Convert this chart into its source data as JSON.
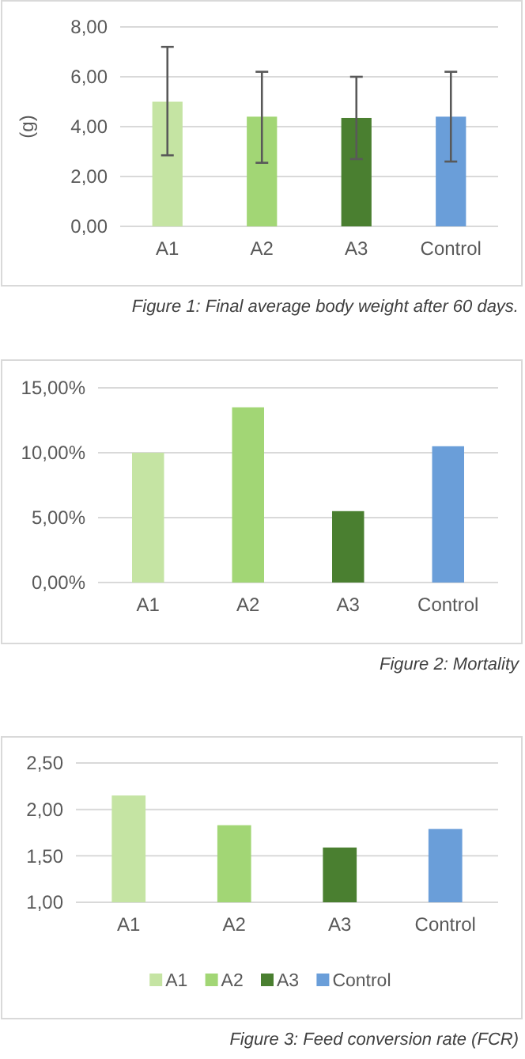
{
  "chart_data": [
    {
      "type": "bar",
      "ylabel": "(g)",
      "categories": [
        "A1",
        "A2",
        "A3",
        "Control"
      ],
      "values": [
        5.0,
        4.4,
        4.35,
        4.4
      ],
      "colors": [
        "#c5e4a3",
        "#a2d675",
        "#4a7f30",
        "#6a9ed9"
      ],
      "errors": [
        [
          2.85,
          7.2
        ],
        [
          2.55,
          6.2
        ],
        [
          2.7,
          6.0
        ],
        [
          2.6,
          6.2
        ]
      ],
      "ylim": [
        0,
        8
      ],
      "yticks": [
        {
          "value": 0,
          "label": "0,00"
        },
        {
          "value": 2,
          "label": "2,00"
        },
        {
          "value": 4,
          "label": "4,00"
        },
        {
          "value": 6,
          "label": "6,00"
        },
        {
          "value": 8,
          "label": "8,00"
        }
      ],
      "grid": "y",
      "legend": false,
      "annotations": [
        "Figure 1: Final average body weight after 60 days."
      ]
    },
    {
      "type": "bar",
      "categories": [
        "A1",
        "A2",
        "A3",
        "Control"
      ],
      "values": [
        10.0,
        13.5,
        5.5,
        10.5
      ],
      "colors": [
        "#c5e4a3",
        "#a2d675",
        "#4a7f30",
        "#6a9ed9"
      ],
      "ylim": [
        0,
        15
      ],
      "yticks": [
        {
          "value": 0,
          "label": "0,00%"
        },
        {
          "value": 5,
          "label": "5,00%"
        },
        {
          "value": 10,
          "label": "10,00%"
        },
        {
          "value": 15,
          "label": "15,00%"
        }
      ],
      "grid": "y",
      "legend": false,
      "annotations": [
        "Figure 2: Mortality"
      ]
    },
    {
      "type": "bar",
      "categories": [
        "A1",
        "A2",
        "A3",
        "Control"
      ],
      "series": [
        {
          "name": "A1",
          "color": "#c5e4a3",
          "values": [
            2.15,
            null,
            null,
            null
          ]
        },
        {
          "name": "A2",
          "color": "#a2d675",
          "values": [
            null,
            1.83,
            null,
            null
          ]
        },
        {
          "name": "A3",
          "color": "#4a7f30",
          "values": [
            null,
            null,
            1.59,
            null
          ]
        },
        {
          "name": "Control",
          "color": "#6a9ed9",
          "values": [
            null,
            null,
            null,
            1.79
          ]
        }
      ],
      "ylim": [
        1,
        2.5
      ],
      "yticks": [
        {
          "value": 1,
          "label": "1,00"
        },
        {
          "value": 1.5,
          "label": "1,50"
        },
        {
          "value": 2,
          "label": "2,00"
        },
        {
          "value": 2.5,
          "label": "2,50"
        }
      ],
      "grid": "y",
      "legend": "bottom",
      "annotations": [
        "Figure 3: Feed conversion rate (FCR)"
      ]
    }
  ]
}
